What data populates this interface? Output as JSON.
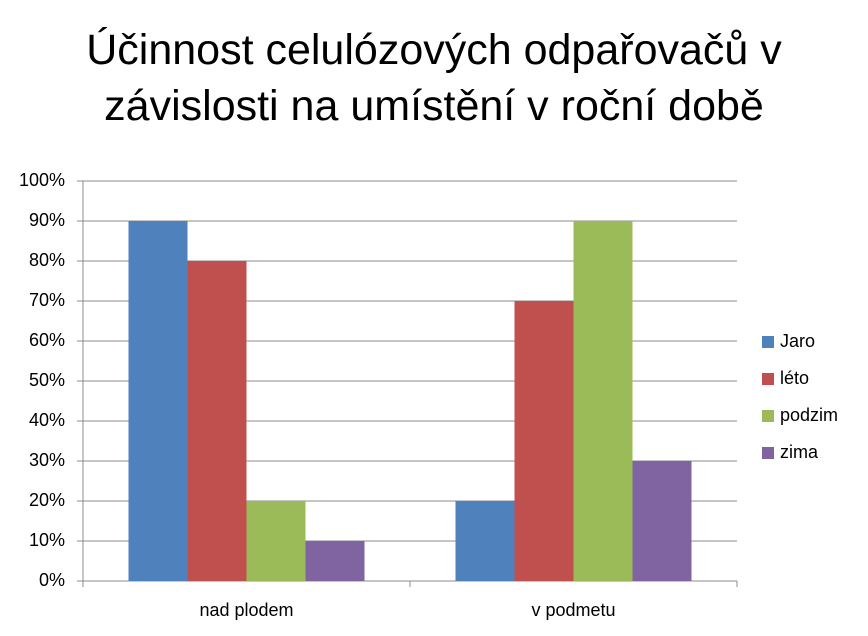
{
  "chart_data": {
    "type": "bar",
    "title": "Účinnost celulózových odpařovačů v závislosti na umístění v roční době",
    "categories": [
      "nad plodem",
      "v podmetu"
    ],
    "series": [
      {
        "name": "Jaro",
        "color": "#4f81bd",
        "values": [
          90,
          20
        ]
      },
      {
        "name": "léto",
        "color": "#c0504d",
        "values": [
          80,
          70
        ]
      },
      {
        "name": "podzim",
        "color": "#9bbb59",
        "values": [
          20,
          90
        ]
      },
      {
        "name": "zima",
        "color": "#8064a2",
        "values": [
          10,
          30
        ]
      }
    ],
    "ylim": [
      0,
      100
    ],
    "yticks": [
      {
        "value": 0,
        "label": "0%"
      },
      {
        "value": 10,
        "label": "10%"
      },
      {
        "value": 20,
        "label": "20%"
      },
      {
        "value": 30,
        "label": "30%"
      },
      {
        "value": 40,
        "label": "40%"
      },
      {
        "value": 50,
        "label": "50%"
      },
      {
        "value": 60,
        "label": "60%"
      },
      {
        "value": 70,
        "label": "70%"
      },
      {
        "value": 80,
        "label": "80%"
      },
      {
        "value": 90,
        "label": "90%"
      },
      {
        "value": 100,
        "label": "100%"
      }
    ],
    "grid": true,
    "legend": "right"
  }
}
